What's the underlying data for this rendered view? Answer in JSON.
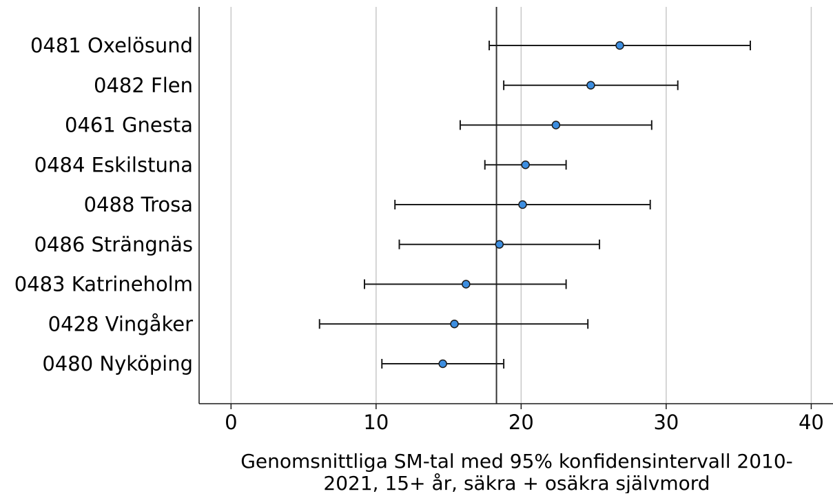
{
  "chart_data": {
    "type": "scatter",
    "subtype": "forest-plot-with-error-bars",
    "title": "",
    "xlabel_lines": [
      "Genomsnittliga SM-tal med 95% konfidensintervall 2010-",
      "2021, 15+ år, säkra + osäkra självmord"
    ],
    "ylabel": "",
    "xlim": [
      -2.2,
      41.5
    ],
    "xticks": [
      0,
      10,
      20,
      30,
      40
    ],
    "grid": "vertical",
    "reference_line": 18.3,
    "colors": {
      "marker_fill": "#3d8ee0",
      "marker_stroke": "#1a1a1a",
      "error_bar": "#1a1a1a",
      "grid": "#c8c8c8",
      "axis": "#1a1a1a",
      "reference_line": "#333333"
    },
    "categories": [
      "0481 Oxelösund",
      "0482 Flen",
      "0461 Gnesta",
      "0484 Eskilstuna",
      "0488 Trosa",
      "0486 Strängnäs",
      "0483 Katrineholm",
      "0428 Vingåker",
      "0480 Nyköping"
    ],
    "values": [
      26.8,
      24.8,
      22.4,
      20.3,
      20.1,
      18.5,
      16.2,
      15.4,
      14.6
    ],
    "ci_low": [
      17.8,
      18.8,
      15.8,
      17.5,
      11.3,
      11.6,
      9.2,
      6.1,
      10.4
    ],
    "ci_high": [
      35.8,
      30.8,
      29.0,
      23.1,
      28.9,
      25.4,
      23.1,
      24.6,
      18.8
    ]
  }
}
